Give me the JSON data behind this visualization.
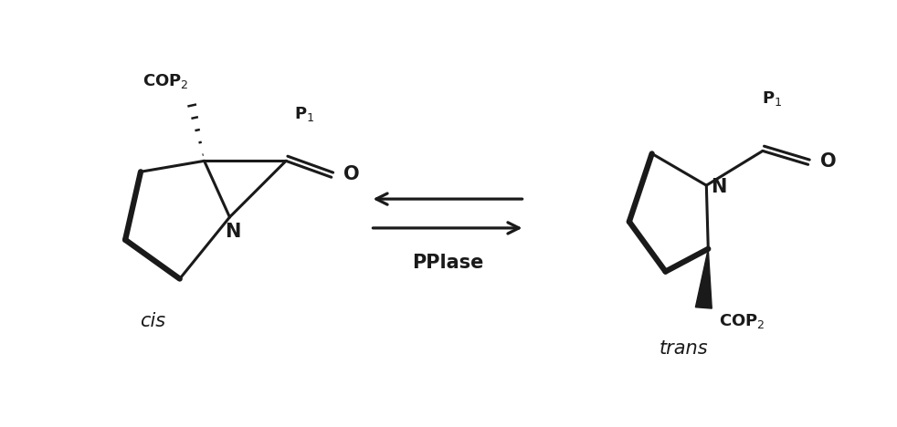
{
  "bg_color": "#ffffff",
  "line_color": "#1a1a1a",
  "lw": 2.2,
  "blw": 4.5,
  "arrow_color": "#1a1a1a",
  "text_color": "#1a1a1a",
  "fig_width": 9.82,
  "fig_height": 4.68,
  "dpi": 100,
  "pplase_label": "PPlase",
  "cis_label": "cis",
  "trans_label": "trans"
}
